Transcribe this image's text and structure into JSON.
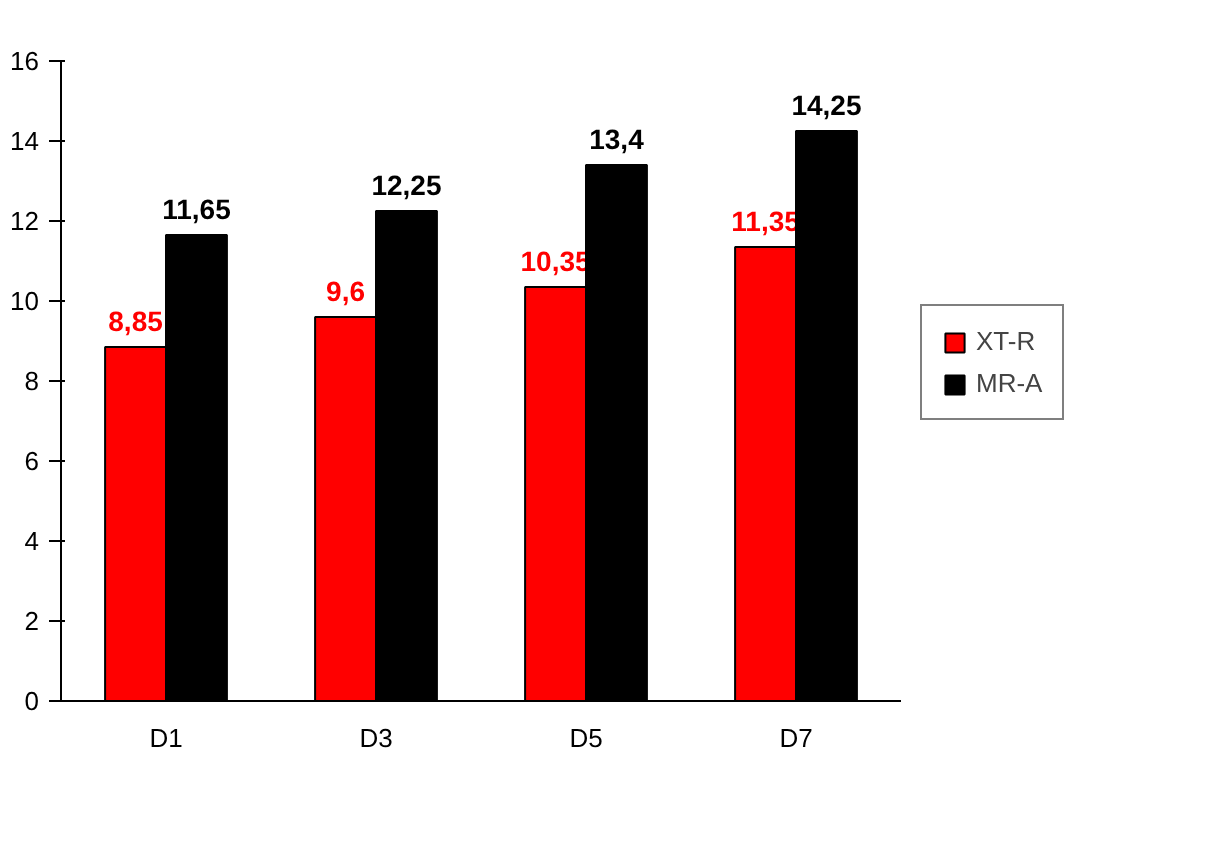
{
  "chart_data": {
    "type": "bar",
    "categories": [
      "D1",
      "D3",
      "D5",
      "D7"
    ],
    "series": [
      {
        "name": "XT-R",
        "color": "#ff0000",
        "values": [
          8.85,
          9.6,
          10.35,
          11.35
        ],
        "value_labels": [
          "8,85",
          "9,6",
          "10,35",
          "11,35"
        ]
      },
      {
        "name": "MR-A",
        "color": "#000000",
        "values": [
          11.65,
          12.25,
          13.4,
          14.25
        ],
        "value_labels": [
          "11,65",
          "12,25",
          "13,4",
          "14,25"
        ]
      }
    ],
    "ylim": [
      0,
      16
    ],
    "yticks": [
      0,
      2,
      4,
      6,
      8,
      10,
      12,
      14,
      16
    ],
    "grid": false,
    "legend": "right"
  }
}
